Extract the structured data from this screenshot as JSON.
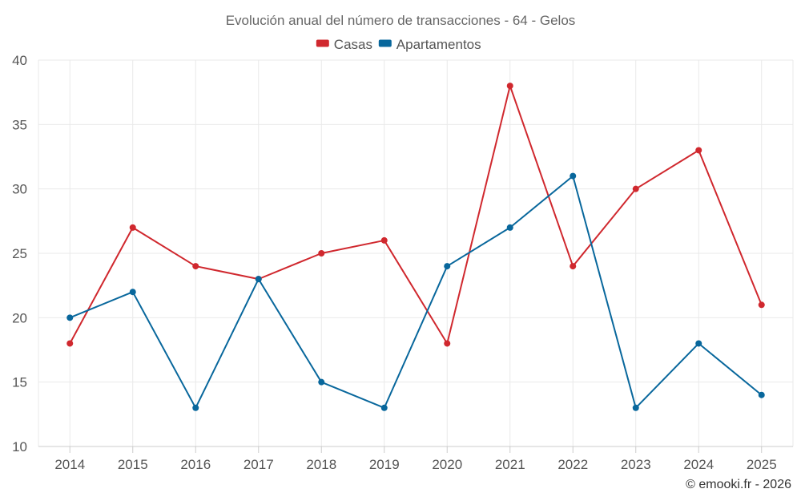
{
  "chart_data": {
    "type": "line",
    "title": "Evolución anual del número de transacciones - 64 - Gelos",
    "categories": [
      "2014",
      "2015",
      "2016",
      "2017",
      "2018",
      "2019",
      "2020",
      "2021",
      "2022",
      "2023",
      "2024",
      "2025"
    ],
    "series": [
      {
        "name": "Casas",
        "color": "#d0282e",
        "values": [
          18,
          27,
          24,
          23,
          25,
          26,
          18,
          38,
          24,
          30,
          33,
          21
        ]
      },
      {
        "name": "Apartamentos",
        "color": "#08679c",
        "values": [
          20,
          22,
          13,
          23,
          15,
          13,
          24,
          27,
          31,
          13,
          18,
          14
        ]
      }
    ],
    "ylim": [
      10,
      40
    ],
    "yticks": [
      10,
      15,
      20,
      25,
      30,
      35,
      40
    ],
    "xlabel": "",
    "ylabel": "",
    "grid": true,
    "legend_position": "top-center"
  },
  "credit": "© emooki.fr - 2026"
}
